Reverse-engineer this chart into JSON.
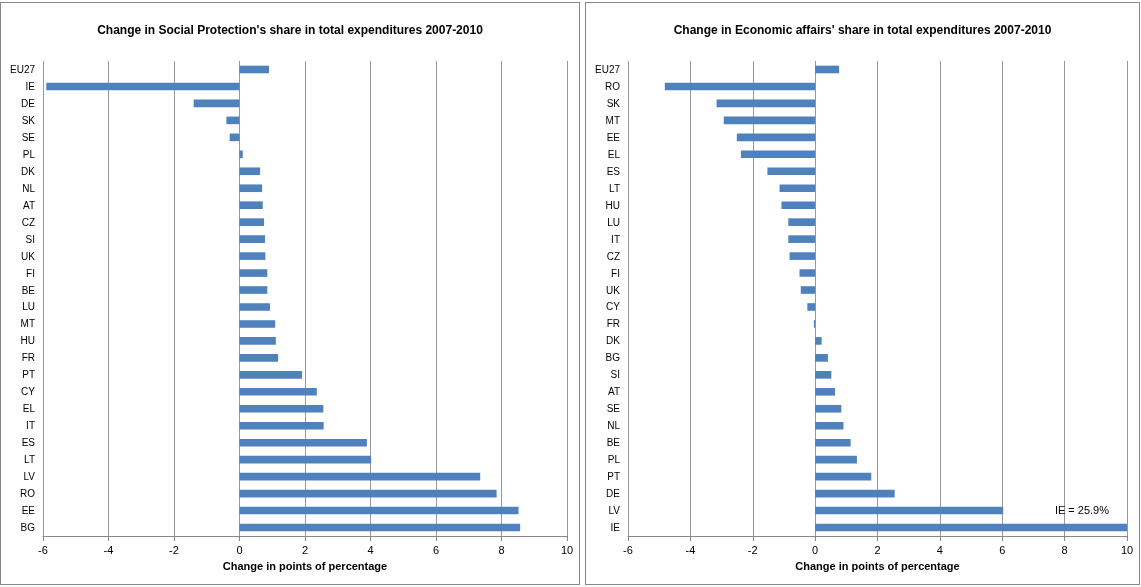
{
  "chart_data": [
    {
      "type": "bar",
      "orientation": "horizontal",
      "title": "Change in Social Protection's share in total expenditures 2007-2010",
      "xlabel": "Change in points of percentage",
      "categories": [
        "EU27",
        "IE",
        "DE",
        "SK",
        "SE",
        "PL",
        "DK",
        "NL",
        "AT",
        "CZ",
        "SI",
        "UK",
        "FI",
        "BE",
        "LU",
        "MT",
        "HU",
        "FR",
        "PT",
        "CY",
        "EL",
        "IT",
        "ES",
        "LT",
        "LV",
        "RO",
        "EE",
        "BG"
      ],
      "values": [
        0.9,
        -5.9,
        -1.4,
        -0.4,
        -0.3,
        0.1,
        0.63,
        0.69,
        0.71,
        0.75,
        0.78,
        0.79,
        0.85,
        0.85,
        0.93,
        1.09,
        1.11,
        1.18,
        1.91,
        2.36,
        2.56,
        2.57,
        3.89,
        4.02,
        7.35,
        7.85,
        8.52,
        8.57
      ],
      "color": "#4f81bd",
      "xlim": [
        -6,
        10
      ],
      "xticks": [
        -6,
        -4,
        -2,
        0,
        2,
        4,
        6,
        8,
        10
      ],
      "grid": "x"
    },
    {
      "type": "bar",
      "orientation": "horizontal",
      "title": "Change in Economic affairs' share in total expenditures 2007-2010",
      "xlabel": "Change in points of percentage",
      "categories": [
        "EU27",
        "RO",
        "SK",
        "MT",
        "EE",
        "EL",
        "ES",
        "LT",
        "HU",
        "LU",
        "IT",
        "CZ",
        "FI",
        "UK",
        "CY",
        "FR",
        "DK",
        "BG",
        "SI",
        "AT",
        "SE",
        "NL",
        "BE",
        "PL",
        "PT",
        "DE",
        "LV",
        "IE"
      ],
      "values": [
        0.77,
        -4.82,
        -3.16,
        -2.93,
        -2.51,
        -2.38,
        -1.53,
        -1.14,
        -1.08,
        -0.86,
        -0.86,
        -0.82,
        -0.5,
        -0.46,
        -0.25,
        -0.04,
        0.21,
        0.41,
        0.52,
        0.64,
        0.84,
        0.91,
        1.14,
        1.34,
        1.8,
        2.55,
        6.03,
        10
      ],
      "annotations": [
        "IE = 25.9%"
      ],
      "color": "#4f81bd",
      "xlim": [
        -6,
        10
      ],
      "xticks": [
        -6,
        -4,
        -2,
        0,
        2,
        4,
        6,
        8,
        10
      ],
      "grid": "x"
    }
  ]
}
